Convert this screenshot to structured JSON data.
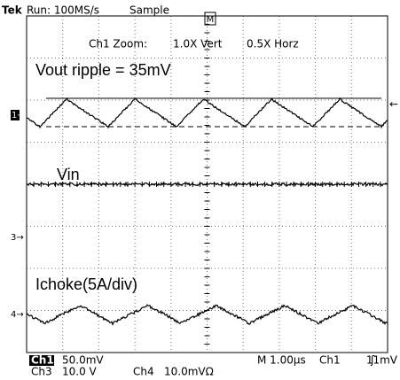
{
  "header": {
    "brand": "Tek",
    "run": "Run: 100MS/s",
    "mode": "Sample",
    "trigger_marker": "M"
  },
  "zoom": {
    "label": "Ch1 Zoom:",
    "vert": "1.0X Vert",
    "horz": "0.5X Horz"
  },
  "annotations": {
    "vout": "Vout ripple = 35mV",
    "vin": "Vin",
    "ichoke": "Ichoke(5A/div)"
  },
  "channel_markers": {
    "ch1": "1→",
    "ch3": "3→",
    "ch4": "4→",
    "trigger_level": "←"
  },
  "footer": {
    "ch1": "Ch1",
    "ch1_scale": "50.0mV",
    "ch3": "Ch3",
    "ch3_scale": "10.0 V",
    "ch4": "Ch4",
    "ch4_scale": "10.0mVΩ",
    "timebase": "M 1.00µs",
    "trigger_source": "Ch1",
    "trigger_level": "11mV"
  }
}
